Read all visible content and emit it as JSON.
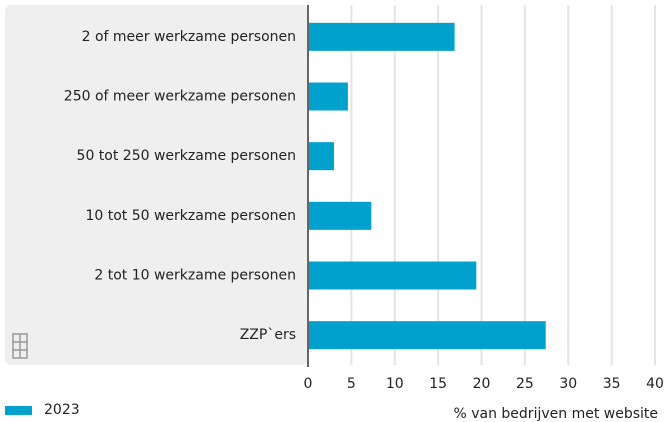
{
  "chart_data": {
    "type": "bar",
    "orientation": "horizontal",
    "categories": [
      "2 of meer werkzame personen",
      "250 of meer werkzame personen",
      "50 tot 250 werkzame personen",
      "10 tot 50 werkzame personen",
      "2 tot 10 werkzame personen",
      "ZZP`ers"
    ],
    "series": [
      {
        "name": "2023",
        "color": "#00a1cd",
        "values": [
          16.9,
          4.6,
          3.0,
          7.3,
          19.4,
          27.4
        ]
      }
    ],
    "xlim": [
      0,
      40
    ],
    "xticks": [
      0,
      5,
      10,
      15,
      20,
      25,
      30,
      35,
      40
    ],
    "xlabel": "% van bedrijven met website",
    "grid": true,
    "legend": "bottom-left"
  }
}
